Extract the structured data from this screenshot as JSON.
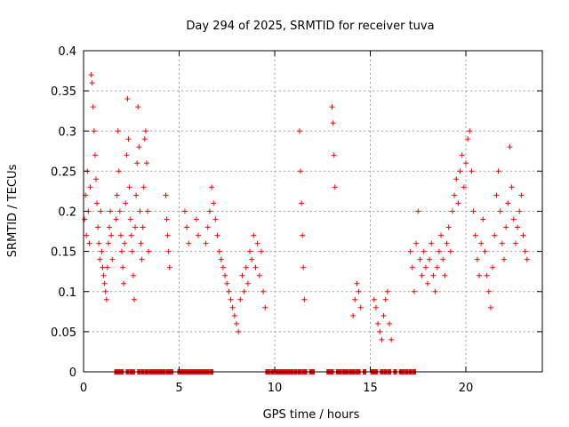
{
  "chart_data": {
    "type": "scatter",
    "title": "Day 294 of 2025, SRMTID for receiver tuva",
    "xlabel": "GPS time / hours",
    "ylabel": "SRMTID / TECUs",
    "xlim": [
      0,
      24
    ],
    "ylim": [
      0,
      0.4
    ],
    "xticks": [
      "0",
      "5",
      "10",
      "15",
      "20"
    ],
    "yticks": [
      "0",
      "0.05",
      "0.1",
      "0.15",
      "0.2",
      "0.25",
      "0.3",
      "0.35",
      "0.4"
    ],
    "grid": true,
    "marker": "+",
    "colors": {
      "series": "#ff0000"
    },
    "series": [
      {
        "points": [
          [
            0.05,
            0.19
          ],
          [
            0.1,
            0.22
          ],
          [
            0.15,
            0.17
          ],
          [
            0.2,
            0.25
          ],
          [
            0.25,
            0.2
          ],
          [
            0.3,
            0.16
          ],
          [
            0.35,
            0.23
          ],
          [
            0.4,
            0.37
          ],
          [
            0.45,
            0.36
          ],
          [
            0.5,
            0.33
          ],
          [
            0.55,
            0.3
          ],
          [
            0.6,
            0.27
          ],
          [
            0.65,
            0.24
          ],
          [
            0.7,
            0.21
          ],
          [
            0.75,
            0.18
          ],
          [
            0.8,
            0.16
          ],
          [
            0.85,
            0.14
          ],
          [
            0.9,
            0.2
          ],
          [
            0.95,
            0.15
          ],
          [
            1.0,
            0.13
          ],
          [
            1.05,
            0.12
          ],
          [
            1.1,
            0.11
          ],
          [
            1.15,
            0.1
          ],
          [
            1.2,
            0.09
          ],
          [
            1.25,
            0.13
          ],
          [
            1.3,
            0.16
          ],
          [
            1.35,
            0.18
          ],
          [
            1.4,
            0.2
          ],
          [
            1.45,
            0.17
          ],
          [
            1.5,
            0.14
          ],
          [
            1.7,
            0.19
          ],
          [
            1.75,
            0.22
          ],
          [
            1.8,
            0.3
          ],
          [
            1.85,
            0.25
          ],
          [
            1.9,
            0.2
          ],
          [
            1.95,
            0.17
          ],
          [
            2.0,
            0.15
          ],
          [
            2.05,
            0.13
          ],
          [
            2.1,
            0.11
          ],
          [
            2.15,
            0.16
          ],
          [
            2.2,
            0.21
          ],
          [
            2.25,
            0.27
          ],
          [
            2.3,
            0.34
          ],
          [
            2.35,
            0.29
          ],
          [
            2.4,
            0.23
          ],
          [
            2.45,
            0.19
          ],
          [
            2.5,
            0.17
          ],
          [
            2.55,
            0.15
          ],
          [
            2.6,
            0.12
          ],
          [
            2.65,
            0.09
          ],
          [
            2.7,
            0.18
          ],
          [
            2.75,
            0.22
          ],
          [
            2.8,
            0.26
          ],
          [
            2.85,
            0.33
          ],
          [
            2.9,
            0.28
          ],
          [
            2.95,
            0.2
          ],
          [
            3.0,
            0.16
          ],
          [
            3.05,
            0.14
          ],
          [
            3.1,
            0.18
          ],
          [
            3.15,
            0.23
          ],
          [
            3.2,
            0.29
          ],
          [
            3.25,
            0.3
          ],
          [
            3.3,
            0.26
          ],
          [
            3.35,
            0.2
          ],
          [
            3.4,
            0.15
          ],
          [
            4.3,
            0.22
          ],
          [
            4.35,
            0.19
          ],
          [
            4.4,
            0.17
          ],
          [
            4.45,
            0.15
          ],
          [
            4.5,
            0.13
          ],
          [
            5.3,
            0.2
          ],
          [
            5.4,
            0.18
          ],
          [
            5.5,
            0.16
          ],
          [
            5.9,
            0.19
          ],
          [
            6.0,
            0.17
          ],
          [
            6.4,
            0.16
          ],
          [
            6.5,
            0.18
          ],
          [
            6.6,
            0.2
          ],
          [
            6.7,
            0.23
          ],
          [
            6.8,
            0.21
          ],
          [
            6.9,
            0.19
          ],
          [
            7.0,
            0.17
          ],
          [
            7.1,
            0.15
          ],
          [
            7.2,
            0.14
          ],
          [
            7.3,
            0.13
          ],
          [
            7.4,
            0.12
          ],
          [
            7.5,
            0.11
          ],
          [
            7.6,
            0.1
          ],
          [
            7.7,
            0.09
          ],
          [
            7.8,
            0.08
          ],
          [
            7.9,
            0.07
          ],
          [
            8.0,
            0.06
          ],
          [
            8.1,
            0.05
          ],
          [
            8.2,
            0.09
          ],
          [
            8.3,
            0.12
          ],
          [
            8.4,
            0.1
          ],
          [
            8.5,
            0.13
          ],
          [
            8.6,
            0.11
          ],
          [
            8.7,
            0.15
          ],
          [
            8.8,
            0.14
          ],
          [
            8.9,
            0.17
          ],
          [
            9.0,
            0.13
          ],
          [
            9.1,
            0.16
          ],
          [
            9.2,
            0.12
          ],
          [
            9.3,
            0.15
          ],
          [
            9.4,
            0.1
          ],
          [
            9.5,
            0.08
          ],
          [
            11.3,
            0.3
          ],
          [
            11.35,
            0.25
          ],
          [
            11.4,
            0.21
          ],
          [
            11.45,
            0.17
          ],
          [
            11.5,
            0.13
          ],
          [
            11.55,
            0.09
          ],
          [
            13.0,
            0.33
          ],
          [
            13.05,
            0.31
          ],
          [
            13.1,
            0.27
          ],
          [
            13.15,
            0.23
          ],
          [
            14.1,
            0.07
          ],
          [
            14.2,
            0.09
          ],
          [
            14.3,
            0.11
          ],
          [
            14.4,
            0.1
          ],
          [
            14.5,
            0.08
          ],
          [
            15.2,
            0.09
          ],
          [
            15.3,
            0.08
          ],
          [
            15.4,
            0.06
          ],
          [
            15.5,
            0.05
          ],
          [
            15.6,
            0.04
          ],
          [
            15.7,
            0.07
          ],
          [
            15.8,
            0.09
          ],
          [
            15.9,
            0.1
          ],
          [
            16.0,
            0.06
          ],
          [
            16.1,
            0.04
          ],
          [
            17.1,
            0.15
          ],
          [
            17.2,
            0.13
          ],
          [
            17.3,
            0.1
          ],
          [
            17.4,
            0.16
          ],
          [
            17.5,
            0.2
          ],
          [
            17.6,
            0.14
          ],
          [
            17.7,
            0.12
          ],
          [
            17.8,
            0.15
          ],
          [
            17.9,
            0.13
          ],
          [
            18.0,
            0.11
          ],
          [
            18.1,
            0.14
          ],
          [
            18.2,
            0.16
          ],
          [
            18.3,
            0.12
          ],
          [
            18.4,
            0.1
          ],
          [
            18.5,
            0.13
          ],
          [
            18.6,
            0.15
          ],
          [
            18.7,
            0.17
          ],
          [
            18.8,
            0.14
          ],
          [
            18.9,
            0.12
          ],
          [
            19.0,
            0.16
          ],
          [
            19.1,
            0.18
          ],
          [
            19.2,
            0.15
          ],
          [
            19.3,
            0.2
          ],
          [
            19.4,
            0.22
          ],
          [
            19.5,
            0.24
          ],
          [
            19.6,
            0.21
          ],
          [
            19.7,
            0.25
          ],
          [
            19.8,
            0.27
          ],
          [
            19.9,
            0.23
          ],
          [
            20.0,
            0.26
          ],
          [
            20.1,
            0.29
          ],
          [
            20.2,
            0.3
          ],
          [
            20.3,
            0.25
          ],
          [
            20.4,
            0.2
          ],
          [
            20.5,
            0.17
          ],
          [
            20.6,
            0.14
          ],
          [
            20.7,
            0.12
          ],
          [
            20.8,
            0.16
          ],
          [
            20.9,
            0.19
          ],
          [
            21.0,
            0.15
          ],
          [
            21.1,
            0.12
          ],
          [
            21.2,
            0.1
          ],
          [
            21.3,
            0.08
          ],
          [
            21.4,
            0.13
          ],
          [
            21.5,
            0.17
          ],
          [
            21.6,
            0.22
          ],
          [
            21.7,
            0.25
          ],
          [
            21.8,
            0.2
          ],
          [
            21.9,
            0.16
          ],
          [
            22.0,
            0.14
          ],
          [
            22.1,
            0.18
          ],
          [
            22.2,
            0.21
          ],
          [
            22.3,
            0.28
          ],
          [
            22.4,
            0.23
          ],
          [
            22.5,
            0.19
          ],
          [
            22.6,
            0.16
          ],
          [
            22.7,
            0.18
          ],
          [
            22.8,
            0.2
          ],
          [
            22.9,
            0.22
          ],
          [
            23.0,
            0.17
          ],
          [
            23.1,
            0.15
          ],
          [
            23.2,
            0.14
          ]
        ],
        "zero_points": [
          1.7,
          1.8,
          1.9,
          2.0,
          2.3,
          2.5,
          2.6,
          2.9,
          3.1,
          3.3,
          3.5,
          3.6,
          3.7,
          3.8,
          3.9,
          4.0,
          4.1,
          4.2,
          4.4,
          4.5,
          4.6,
          5.0,
          5.1,
          5.2,
          5.3,
          5.4,
          5.5,
          5.6,
          5.7,
          5.8,
          5.9,
          6.0,
          6.1,
          6.2,
          6.3,
          6.4,
          6.5,
          6.7,
          9.6,
          9.7,
          9.9,
          10.1,
          10.2,
          10.3,
          10.4,
          10.5,
          10.6,
          10.7,
          10.8,
          10.9,
          11.1,
          11.3,
          11.5,
          11.6,
          11.9,
          12.0,
          12.8,
          12.9,
          13.0,
          13.3,
          13.4,
          13.6,
          13.7,
          13.8,
          14.0,
          14.1,
          14.3,
          14.4,
          14.7,
          15.1,
          15.2,
          15.3,
          15.6,
          15.8,
          16.0,
          16.3,
          16.6,
          16.7,
          16.9,
          17.1,
          17.3
        ]
      }
    ]
  }
}
